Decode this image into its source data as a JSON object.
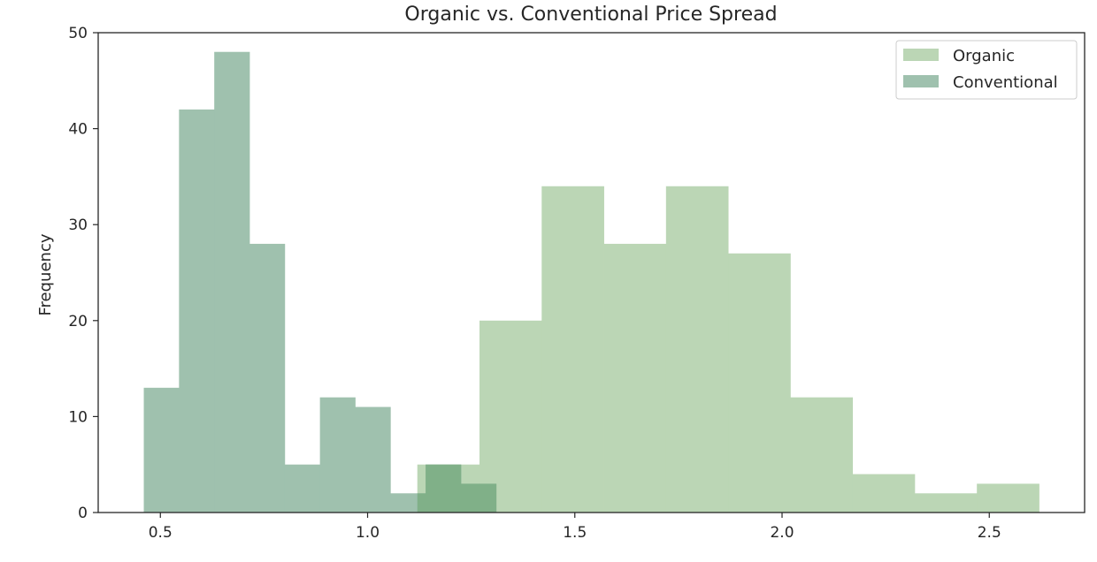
{
  "chart_data": {
    "type": "bar",
    "title": "Organic vs. Conventional Price Spread",
    "xlabel": "",
    "ylabel": "Frequency",
    "xlim": [
      0.35,
      2.73
    ],
    "ylim": [
      0,
      50
    ],
    "xticks": [
      0.5,
      1.0,
      1.5,
      2.0,
      2.5
    ],
    "xtick_labels": [
      "0.5",
      "1.0",
      "1.5",
      "2.0",
      "2.5"
    ],
    "yticks": [
      0,
      10,
      20,
      30,
      40,
      50
    ],
    "ytick_labels": [
      "0",
      "10",
      "20",
      "30",
      "40",
      "50"
    ],
    "grid": false,
    "legend_position": "top-right",
    "series": [
      {
        "name": "Organic",
        "color": "#bbd6b5",
        "bin_edges": [
          1.12,
          1.27,
          1.42,
          1.57,
          1.72,
          1.87,
          2.02,
          2.17,
          2.32,
          2.47,
          2.62
        ],
        "counts": [
          5,
          20,
          34,
          28,
          34,
          27,
          12,
          4,
          2,
          3
        ]
      },
      {
        "name": "Conventional",
        "color": "#9fc1ae",
        "bin_edges": [
          0.46,
          0.545,
          0.63,
          0.715,
          0.8,
          0.885,
          0.97,
          1.055,
          1.14,
          1.225,
          1.31
        ],
        "counts": [
          13,
          42,
          48,
          28,
          5,
          12,
          11,
          2,
          5,
          3
        ]
      }
    ],
    "overlap_color": "#80b088"
  }
}
